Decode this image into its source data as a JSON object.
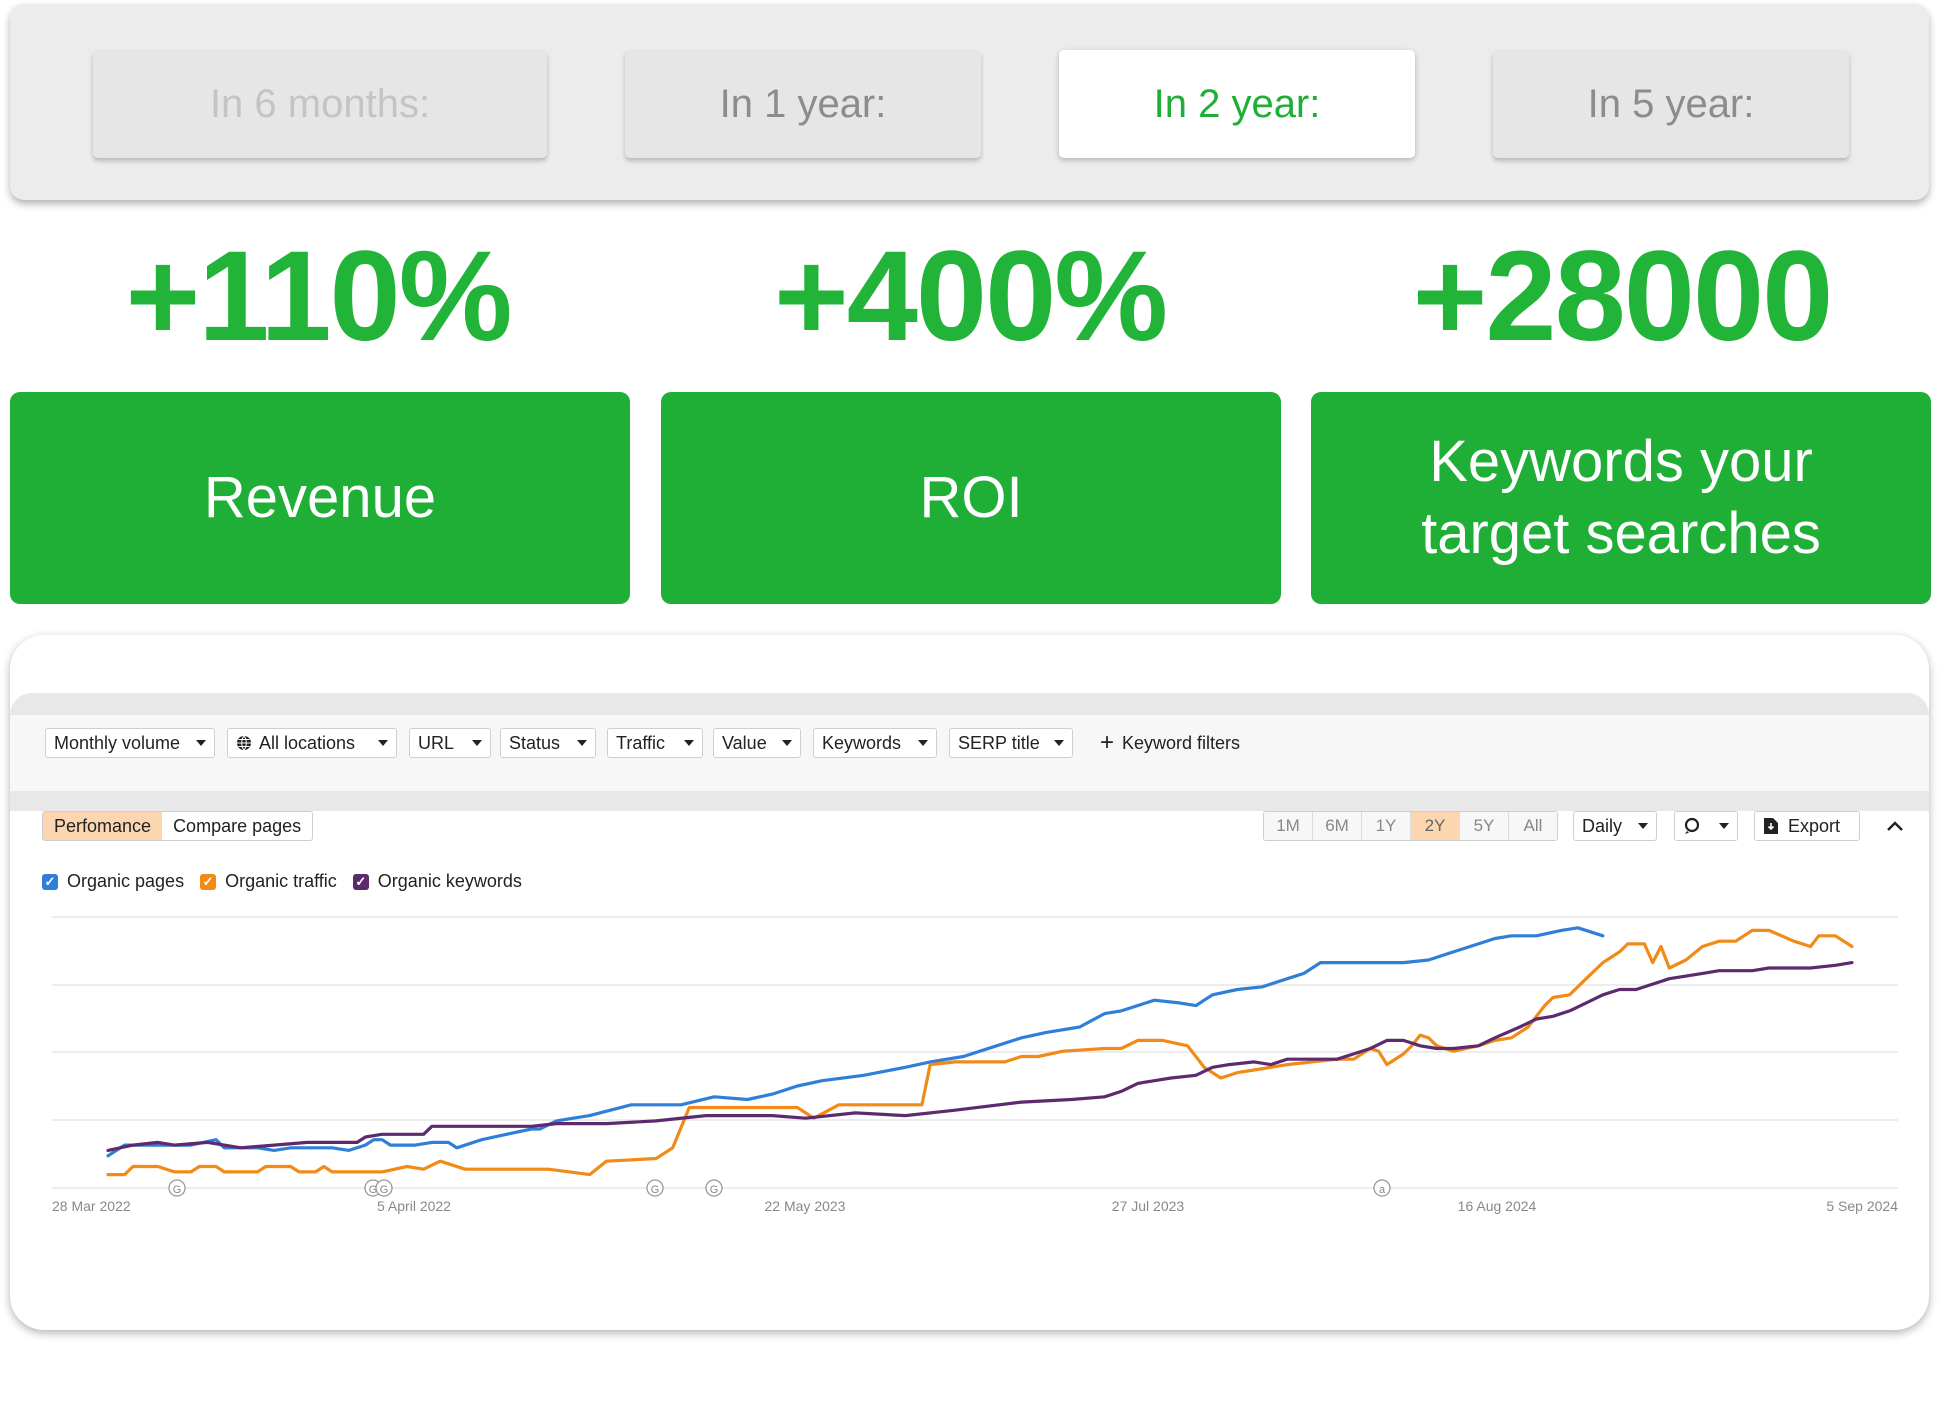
{
  "periods": [
    {
      "label": "In 6 months:",
      "state": "faded"
    },
    {
      "label": "In 1 year:",
      "state": "normal"
    },
    {
      "label": "In 2 year:",
      "state": "active"
    },
    {
      "label": "In 5 year:",
      "state": "normal"
    }
  ],
  "metrics": [
    {
      "value": "+110%",
      "label": "Revenue"
    },
    {
      "value": "+400%",
      "label": "ROI"
    },
    {
      "value": "+28000",
      "label": "Keywords your target searches"
    }
  ],
  "filters": {
    "monthly_volume": "Monthly volume",
    "all_locations": "All locations",
    "url": "URL",
    "status": "Status",
    "traffic": "Traffic",
    "value": "Value",
    "keywords": "Keywords",
    "serp_title": "SERP title",
    "keyword_filters": "Keyword filters"
  },
  "view_tabs": {
    "performance": "Perfomance",
    "compare": "Compare pages"
  },
  "ranges": [
    "1M",
    "6M",
    "1Y",
    "2Y",
    "5Y",
    "All"
  ],
  "selected_range": "2Y",
  "interval": "Daily",
  "export_label": "Export",
  "colors": {
    "accent": "#1fae36",
    "pages": "#2f7fd8",
    "traffic": "#f28a17",
    "keywords": "#5e2a6e",
    "highlight": "#fbd6b0"
  },
  "chart_data": {
    "type": "line",
    "x_tick_labels": [
      "28 Mar 2022",
      "5 April 2022",
      "22 May 2023",
      "27 Jul 2023",
      "16 Aug 2024",
      "5 Sep 2024"
    ],
    "y_tick_labels": [],
    "grid": true,
    "annotation_markers": [
      "G",
      "G",
      "G",
      "G",
      "G",
      "a"
    ],
    "series": [
      {
        "name": "Organic pages",
        "color": "#2f7fd8",
        "points": [
          [
            0,
            0.12
          ],
          [
            0.02,
            0.16
          ],
          [
            0.05,
            0.16
          ],
          [
            0.1,
            0.16
          ],
          [
            0.13,
            0.18
          ],
          [
            0.14,
            0.15
          ],
          [
            0.18,
            0.15
          ],
          [
            0.2,
            0.14
          ],
          [
            0.22,
            0.15
          ],
          [
            0.27,
            0.15
          ],
          [
            0.29,
            0.14
          ],
          [
            0.31,
            0.16
          ],
          [
            0.32,
            0.18
          ],
          [
            0.33,
            0.18
          ],
          [
            0.34,
            0.16
          ],
          [
            0.35,
            0.16
          ],
          [
            0.37,
            0.16
          ],
          [
            0.39,
            0.17
          ],
          [
            0.41,
            0.17
          ],
          [
            0.42,
            0.15
          ],
          [
            0.45,
            0.18
          ],
          [
            0.48,
            0.2
          ],
          [
            0.51,
            0.22
          ],
          [
            0.52,
            0.22
          ],
          [
            0.54,
            0.25
          ],
          [
            0.56,
            0.26
          ],
          [
            0.58,
            0.27
          ],
          [
            0.63,
            0.31
          ],
          [
            0.69,
            0.31
          ],
          [
            0.73,
            0.34
          ],
          [
            0.77,
            0.33
          ],
          [
            0.8,
            0.35
          ],
          [
            0.83,
            0.38
          ],
          [
            0.86,
            0.4
          ],
          [
            0.91,
            0.42
          ],
          [
            0.96,
            0.45
          ],
          [
            0.99,
            0.47
          ],
          [
            1.03,
            0.49
          ],
          [
            1.07,
            0.53
          ],
          [
            1.1,
            0.56
          ],
          [
            1.13,
            0.58
          ],
          [
            1.17,
            0.6
          ],
          [
            1.2,
            0.65
          ],
          [
            1.22,
            0.66
          ],
          [
            1.26,
            0.7
          ],
          [
            1.29,
            0.69
          ],
          [
            1.31,
            0.68
          ],
          [
            1.33,
            0.72
          ],
          [
            1.36,
            0.74
          ],
          [
            1.39,
            0.75
          ],
          [
            1.42,
            0.78
          ],
          [
            1.44,
            0.8
          ],
          [
            1.46,
            0.84
          ],
          [
            1.5,
            0.84
          ],
          [
            1.56,
            0.84
          ],
          [
            1.59,
            0.85
          ],
          [
            1.62,
            0.88
          ],
          [
            1.65,
            0.91
          ],
          [
            1.67,
            0.93
          ],
          [
            1.69,
            0.94
          ],
          [
            1.72,
            0.94
          ],
          [
            1.75,
            0.96
          ],
          [
            1.77,
            0.97
          ],
          [
            1.8,
            0.94
          ]
        ]
      },
      {
        "name": "Organic traffic",
        "color": "#f28a17",
        "points": [
          [
            0,
            0.05
          ],
          [
            0.02,
            0.05
          ],
          [
            0.03,
            0.08
          ],
          [
            0.06,
            0.08
          ],
          [
            0.08,
            0.06
          ],
          [
            0.1,
            0.06
          ],
          [
            0.11,
            0.08
          ],
          [
            0.13,
            0.08
          ],
          [
            0.14,
            0.06
          ],
          [
            0.16,
            0.06
          ],
          [
            0.18,
            0.06
          ],
          [
            0.19,
            0.08
          ],
          [
            0.22,
            0.08
          ],
          [
            0.23,
            0.06
          ],
          [
            0.25,
            0.06
          ],
          [
            0.26,
            0.08
          ],
          [
            0.27,
            0.06
          ],
          [
            0.3,
            0.06
          ],
          [
            0.33,
            0.06
          ],
          [
            0.36,
            0.08
          ],
          [
            0.38,
            0.07
          ],
          [
            0.4,
            0.1
          ],
          [
            0.43,
            0.07
          ],
          [
            0.47,
            0.07
          ],
          [
            0.53,
            0.07
          ],
          [
            0.58,
            0.05
          ],
          [
            0.6,
            0.1
          ],
          [
            0.66,
            0.11
          ],
          [
            0.68,
            0.15
          ],
          [
            0.7,
            0.3
          ],
          [
            0.72,
            0.3
          ],
          [
            0.8,
            0.3
          ],
          [
            0.83,
            0.3
          ],
          [
            0.85,
            0.26
          ],
          [
            0.88,
            0.31
          ],
          [
            0.92,
            0.31
          ],
          [
            0.98,
            0.31
          ],
          [
            0.99,
            0.46
          ],
          [
            1.02,
            0.47
          ],
          [
            1.06,
            0.47
          ],
          [
            1.08,
            0.47
          ],
          [
            1.1,
            0.49
          ],
          [
            1.12,
            0.49
          ],
          [
            1.15,
            0.51
          ],
          [
            1.2,
            0.52
          ],
          [
            1.22,
            0.52
          ],
          [
            1.24,
            0.55
          ],
          [
            1.27,
            0.55
          ],
          [
            1.3,
            0.53
          ],
          [
            1.32,
            0.45
          ],
          [
            1.34,
            0.41
          ],
          [
            1.36,
            0.43
          ],
          [
            1.38,
            0.44
          ],
          [
            1.4,
            0.45
          ],
          [
            1.42,
            0.46
          ],
          [
            1.45,
            0.47
          ],
          [
            1.48,
            0.48
          ],
          [
            1.5,
            0.48
          ],
          [
            1.52,
            0.52
          ],
          [
            1.53,
            0.51
          ],
          [
            1.54,
            0.46
          ],
          [
            1.56,
            0.5
          ],
          [
            1.57,
            0.53
          ],
          [
            1.58,
            0.57
          ],
          [
            1.59,
            0.56
          ],
          [
            1.6,
            0.53
          ],
          [
            1.62,
            0.51
          ],
          [
            1.65,
            0.53
          ],
          [
            1.67,
            0.55
          ],
          [
            1.69,
            0.56
          ],
          [
            1.71,
            0.6
          ],
          [
            1.73,
            0.68
          ],
          [
            1.74,
            0.71
          ],
          [
            1.76,
            0.72
          ],
          [
            1.78,
            0.78
          ],
          [
            1.8,
            0.84
          ],
          [
            1.82,
            0.88
          ],
          [
            1.83,
            0.91
          ],
          [
            1.85,
            0.91
          ],
          [
            1.86,
            0.84
          ],
          [
            1.87,
            0.9
          ],
          [
            1.88,
            0.82
          ],
          [
            1.9,
            0.85
          ],
          [
            1.92,
            0.9
          ],
          [
            1.94,
            0.92
          ],
          [
            1.96,
            0.92
          ],
          [
            1.98,
            0.96
          ],
          [
            2.0,
            0.96
          ],
          [
            2.03,
            0.92
          ],
          [
            2.05,
            0.9
          ],
          [
            2.06,
            0.94
          ],
          [
            2.08,
            0.94
          ],
          [
            2.09,
            0.92
          ],
          [
            2.1,
            0.9
          ]
        ]
      },
      {
        "name": "Organic keywords",
        "color": "#5e2a6e",
        "points": [
          [
            0,
            0.14
          ],
          [
            0.03,
            0.16
          ],
          [
            0.06,
            0.17
          ],
          [
            0.08,
            0.16
          ],
          [
            0.12,
            0.17
          ],
          [
            0.16,
            0.15
          ],
          [
            0.2,
            0.16
          ],
          [
            0.24,
            0.17
          ],
          [
            0.3,
            0.17
          ],
          [
            0.31,
            0.19
          ],
          [
            0.33,
            0.2
          ],
          [
            0.38,
            0.2
          ],
          [
            0.39,
            0.23
          ],
          [
            0.42,
            0.23
          ],
          [
            0.51,
            0.23
          ],
          [
            0.54,
            0.24
          ],
          [
            0.6,
            0.24
          ],
          [
            0.66,
            0.25
          ],
          [
            0.72,
            0.27
          ],
          [
            0.8,
            0.27
          ],
          [
            0.84,
            0.26
          ],
          [
            0.9,
            0.28
          ],
          [
            0.96,
            0.27
          ],
          [
            1.02,
            0.29
          ],
          [
            1.1,
            0.32
          ],
          [
            1.16,
            0.33
          ],
          [
            1.2,
            0.34
          ],
          [
            1.22,
            0.36
          ],
          [
            1.24,
            0.39
          ],
          [
            1.26,
            0.4
          ],
          [
            1.28,
            0.41
          ],
          [
            1.31,
            0.42
          ],
          [
            1.33,
            0.45
          ],
          [
            1.35,
            0.46
          ],
          [
            1.38,
            0.47
          ],
          [
            1.4,
            0.46
          ],
          [
            1.42,
            0.48
          ],
          [
            1.44,
            0.48
          ],
          [
            1.48,
            0.48
          ],
          [
            1.5,
            0.5
          ],
          [
            1.52,
            0.52
          ],
          [
            1.54,
            0.55
          ],
          [
            1.56,
            0.55
          ],
          [
            1.58,
            0.53
          ],
          [
            1.6,
            0.52
          ],
          [
            1.62,
            0.52
          ],
          [
            1.65,
            0.53
          ],
          [
            1.67,
            0.56
          ],
          [
            1.7,
            0.6
          ],
          [
            1.72,
            0.63
          ],
          [
            1.74,
            0.64
          ],
          [
            1.76,
            0.66
          ],
          [
            1.78,
            0.69
          ],
          [
            1.8,
            0.72
          ],
          [
            1.82,
            0.74
          ],
          [
            1.84,
            0.74
          ],
          [
            1.86,
            0.76
          ],
          [
            1.88,
            0.78
          ],
          [
            1.9,
            0.79
          ],
          [
            1.92,
            0.8
          ],
          [
            1.94,
            0.81
          ],
          [
            1.96,
            0.81
          ],
          [
            1.98,
            0.81
          ],
          [
            2.0,
            0.82
          ],
          [
            2.02,
            0.82
          ],
          [
            2.05,
            0.82
          ],
          [
            2.08,
            0.83
          ],
          [
            2.1,
            0.84
          ]
        ]
      }
    ]
  }
}
